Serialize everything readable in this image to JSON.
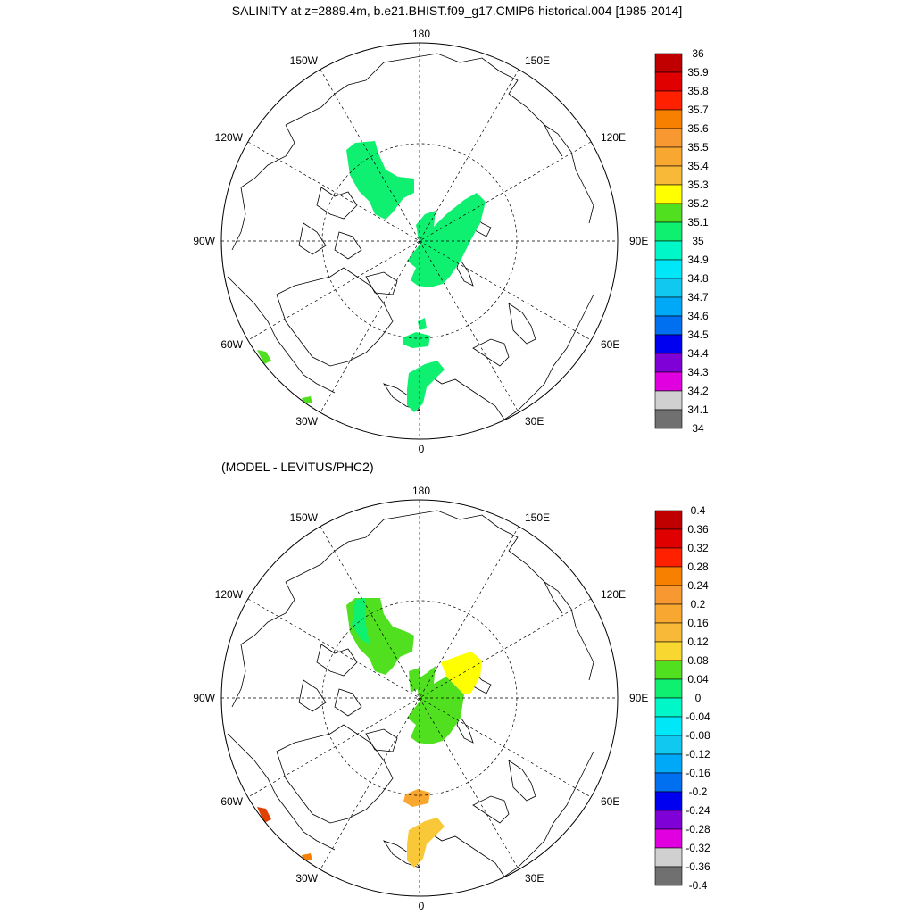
{
  "title": "SALINITY at z=2889.4m, b.e21.BHIST.f09_g17.CMIP6-historical.004 [1985-2014]",
  "subtitle": "(MODEL - LEVITUS/PHC2)",
  "longitude_labels": {
    "top": "180",
    "bottom": "0",
    "left": "90W",
    "right": "90E",
    "w150": "150W",
    "e150": "150E",
    "w120": "120W",
    "e120": "120E",
    "w60": "60W",
    "e60": "60E",
    "w30": "30W",
    "e30": "30E"
  },
  "colorbar_top": {
    "labels": [
      "36",
      "35.9",
      "35.8",
      "35.7",
      "35.6",
      "35.5",
      "35.4",
      "35.3",
      "35.2",
      "35.1",
      "35",
      "34.9",
      "34.8",
      "34.7",
      "34.6",
      "34.5",
      "34.4",
      "34.3",
      "34.2",
      "34.1",
      "34"
    ],
    "colors": [
      "#c00000",
      "#e00000",
      "#ff2000",
      "#f88000",
      "#f89830",
      "#f8a830",
      "#f8b838",
      "#ffff00",
      "#50e020",
      "#10f070",
      "#00f8c8",
      "#00e8f8",
      "#10c8f0",
      "#00a8f8",
      "#0070f0",
      "#0000f0",
      "#8000d8",
      "#e000e0",
      "#d0d0d0",
      "#707070"
    ]
  },
  "colorbar_bottom": {
    "labels": [
      "0.4",
      "0.36",
      "0.32",
      "0.28",
      "0.24",
      "0.2",
      "0.16",
      "0.12",
      "0.08",
      "0.04",
      "0",
      "-0.04",
      "-0.08",
      "-0.12",
      "-0.16",
      "-0.2",
      "-0.24",
      "-0.28",
      "-0.32",
      "-0.36",
      "-0.4"
    ],
    "colors": [
      "#c00000",
      "#e00000",
      "#ff2000",
      "#f88000",
      "#f89830",
      "#f8a830",
      "#f8b838",
      "#f8d830",
      "#50e020",
      "#10f070",
      "#00f8c8",
      "#00e8f8",
      "#10c8f0",
      "#00a8f8",
      "#0070f0",
      "#0000f0",
      "#8000d8",
      "#e000e0",
      "#d0d0d0",
      "#707070"
    ]
  },
  "fill_colors": {
    "top_main": "#10f070",
    "top_edge": "#50e020",
    "bottom_green": "#50e020",
    "bottom_green2": "#10f070",
    "bottom_yellow": "#ffff00",
    "bottom_orange": "#f8a830",
    "bottom_gold": "#f8c838",
    "bottom_red": "#e04000"
  }
}
